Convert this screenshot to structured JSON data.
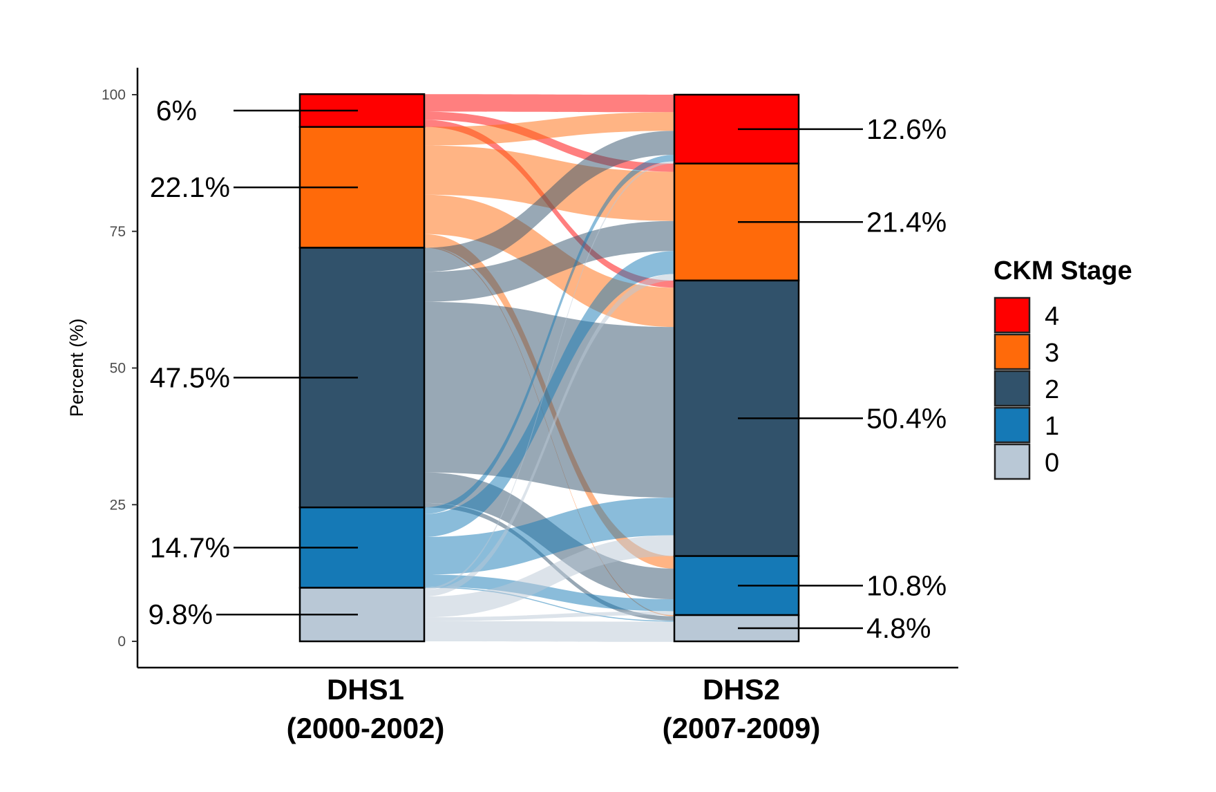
{
  "chart_data": {
    "type": "alluvial",
    "ylabel": "Percent (%)",
    "ylim": [
      0,
      100
    ],
    "yticks": [
      0,
      25,
      50,
      75,
      100
    ],
    "columns": [
      {
        "name": "DHS1",
        "sub": "(2000-2002)"
      },
      {
        "name": "DHS2",
        "sub": "(2007-2009)"
      }
    ],
    "stages": [
      "0",
      "1",
      "2",
      "3",
      "4"
    ],
    "colors": {
      "4": "#ff0000",
      "3": "#ff6a0a",
      "2": "#31526b",
      "1": "#1579b6",
      "0": "#b9c8d6"
    },
    "stack_order": [
      "4",
      "3",
      "2",
      "1",
      "0"
    ],
    "stage_values": {
      "DHS1": {
        "4": 6.0,
        "3": 22.1,
        "2": 47.5,
        "1": 14.7,
        "0": 9.8
      },
      "DHS2": {
        "4": 12.6,
        "3": 21.4,
        "2": 50.4,
        "1": 10.8,
        "0": 4.8
      }
    },
    "bar_labels": {
      "DHS1": {
        "4": "6%",
        "3": "22.1%",
        "2": "47.5%",
        "1": "14.7%",
        "0": "9.8%"
      },
      "DHS2": {
        "4": "12.6%",
        "3": "21.4%",
        "2": "50.4%",
        "1": "10.8%",
        "0": "4.8%"
      }
    },
    "flows": [
      {
        "from": "4",
        "to": "4",
        "value": 3.2
      },
      {
        "from": "4",
        "to": "3",
        "value": 1.5
      },
      {
        "from": "4",
        "to": "2",
        "value": 1.3
      },
      {
        "from": "3",
        "to": "4",
        "value": 3.4
      },
      {
        "from": "3",
        "to": "3",
        "value": 9.0
      },
      {
        "from": "3",
        "to": "2",
        "value": 7.2
      },
      {
        "from": "3",
        "to": "1",
        "value": 2.3
      },
      {
        "from": "3",
        "to": "0",
        "value": 0.2
      },
      {
        "from": "2",
        "to": "4",
        "value": 4.4
      },
      {
        "from": "2",
        "to": "3",
        "value": 5.5
      },
      {
        "from": "2",
        "to": "2",
        "value": 31.2
      },
      {
        "from": "2",
        "to": "1",
        "value": 5.6
      },
      {
        "from": "2",
        "to": "0",
        "value": 0.8
      },
      {
        "from": "1",
        "to": "4",
        "value": 1.2
      },
      {
        "from": "1",
        "to": "3",
        "value": 4.2
      },
      {
        "from": "1",
        "to": "2",
        "value": 6.9
      },
      {
        "from": "1",
        "to": "1",
        "value": 2.2
      },
      {
        "from": "1",
        "to": "0",
        "value": 0.2
      },
      {
        "from": "0",
        "to": "4",
        "value": 0.4
      },
      {
        "from": "0",
        "to": "3",
        "value": 1.2
      },
      {
        "from": "0",
        "to": "2",
        "value": 3.8
      },
      {
        "from": "0",
        "to": "1",
        "value": 0.7
      },
      {
        "from": "0",
        "to": "0",
        "value": 3.7
      }
    ],
    "legend": {
      "title": "CKM Stage",
      "order": [
        "4",
        "3",
        "2",
        "1",
        "0"
      ],
      "position": "right"
    }
  }
}
